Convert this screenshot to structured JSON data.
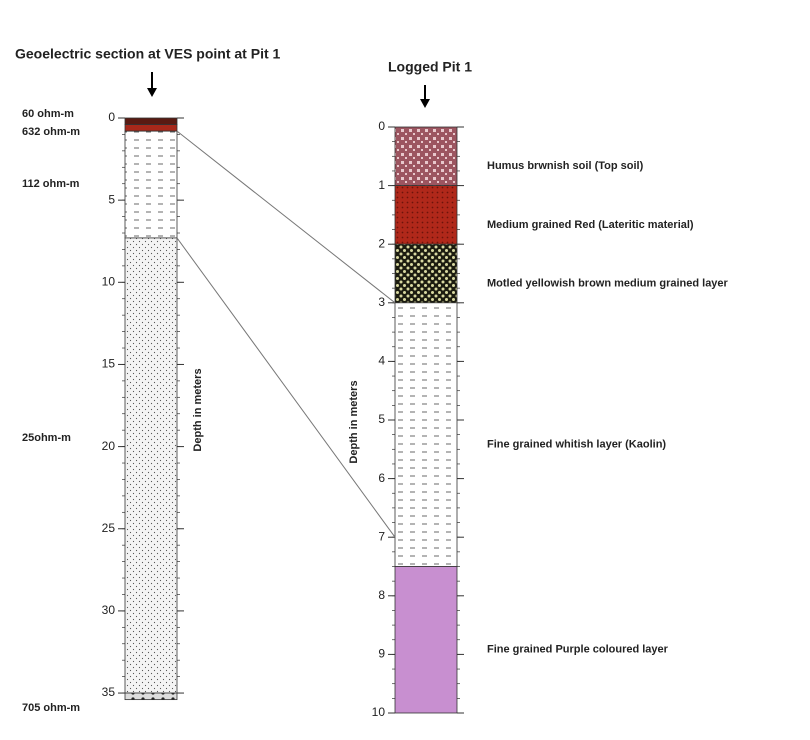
{
  "left": {
    "title": "Geoelectric section at VES  point at Pit 1",
    "axis_label": "Depth in meters",
    "ticks": [
      0,
      5,
      10,
      15,
      20,
      25,
      30,
      35
    ],
    "layers": [
      {
        "top": 0,
        "bottom": 0.4,
        "label": "60 ohm-m",
        "fill": "dark"
      },
      {
        "top": 0.4,
        "bottom": 0.8,
        "label": "632 ohm-m",
        "fill": "red"
      },
      {
        "top": 0.8,
        "bottom": 7.3,
        "label": "112 ohm-m",
        "fill": "dash"
      },
      {
        "top": 7.3,
        "bottom": 35,
        "label": "25ohm-m",
        "fill": "dot"
      },
      {
        "top": 35,
        "bottom": 35.4,
        "label": "705 ohm-m",
        "fill": "gravel"
      }
    ]
  },
  "right": {
    "title": "Logged Pit 1",
    "axis_label": "Depth in meters",
    "ticks": [
      0,
      1,
      2,
      3,
      4,
      5,
      6,
      7,
      8,
      9,
      10
    ],
    "layers": [
      {
        "top": 0,
        "bottom": 1,
        "label": "Humus brwnish soil (Top soil)",
        "fill": "humus"
      },
      {
        "top": 1,
        "bottom": 2,
        "label": "Medium grained Red (Lateritic material)",
        "fill": "laterite"
      },
      {
        "top": 2,
        "bottom": 3,
        "label": "Motled yellowish brown medium grained layer",
        "fill": "mottle"
      },
      {
        "top": 3,
        "bottom": 7.5,
        "label": "Fine grained whitish layer (Kaolin)",
        "fill": "dash"
      },
      {
        "top": 7.5,
        "bottom": 10,
        "label": "Fine grained Purple coloured layer",
        "fill": "purple"
      }
    ]
  },
  "connections": [
    {
      "from": 0.8,
      "to": 3
    },
    {
      "from": 7.3,
      "to": 7
    }
  ]
}
